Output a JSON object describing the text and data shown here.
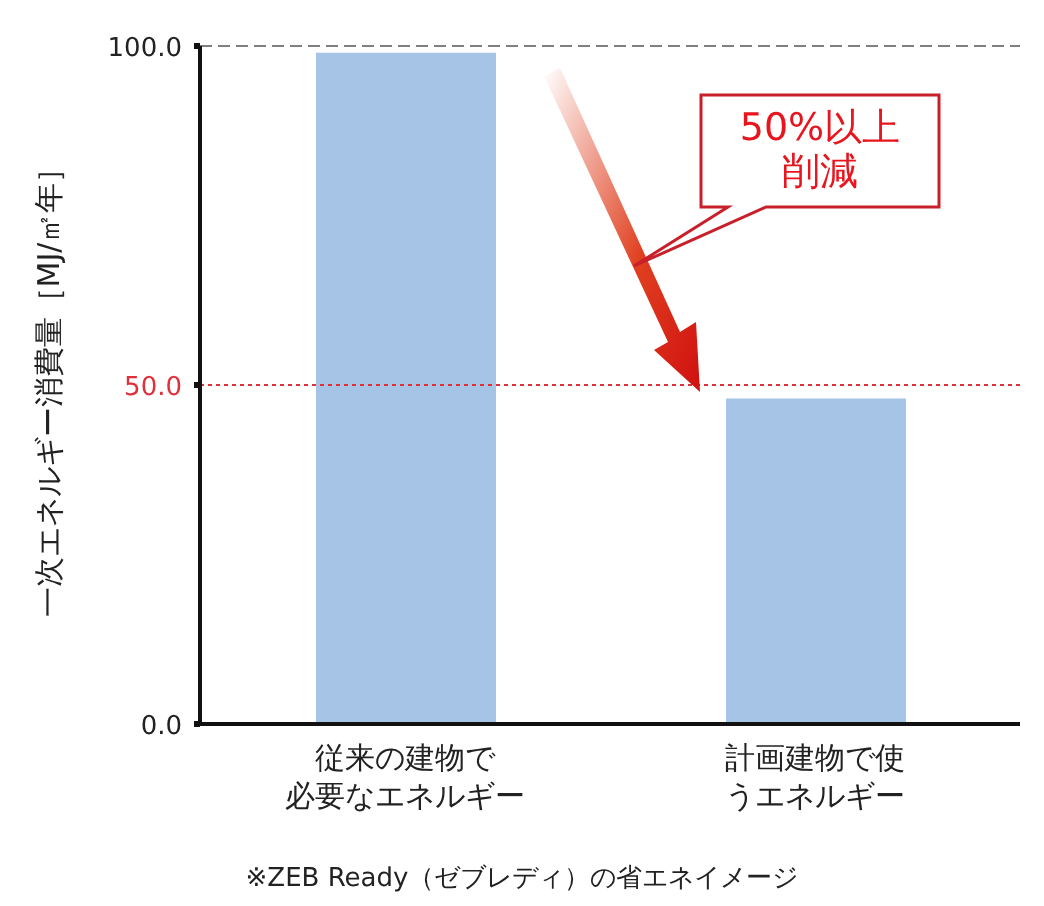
{
  "chart_data": {
    "type": "bar",
    "ylabel": "一次エネルギー消費量［MJ/㎡年］",
    "categories": [
      "従来の建物で必要なエネルギー",
      "計画建物で使うエネルギー"
    ],
    "values": [
      99,
      48
    ],
    "color": "#a6c4e6",
    "ylim": [
      0,
      100
    ],
    "yticks": [
      {
        "value": 0,
        "label": "0.0"
      },
      {
        "value": 50,
        "label": "50.0"
      },
      {
        "value": 100,
        "label": "100.0"
      }
    ],
    "grid": false,
    "ref_lines": [
      {
        "axis": "y",
        "value": 100,
        "color": "#808080",
        "line_style": "dashed"
      },
      {
        "axis": "y",
        "value": 50,
        "color": "#e0303a",
        "line_style": "dotted"
      }
    ],
    "annotations": [
      "50%以上削減",
      "※ZEB Ready（ゼブレディ）の省エネイメージ"
    ]
  }
}
